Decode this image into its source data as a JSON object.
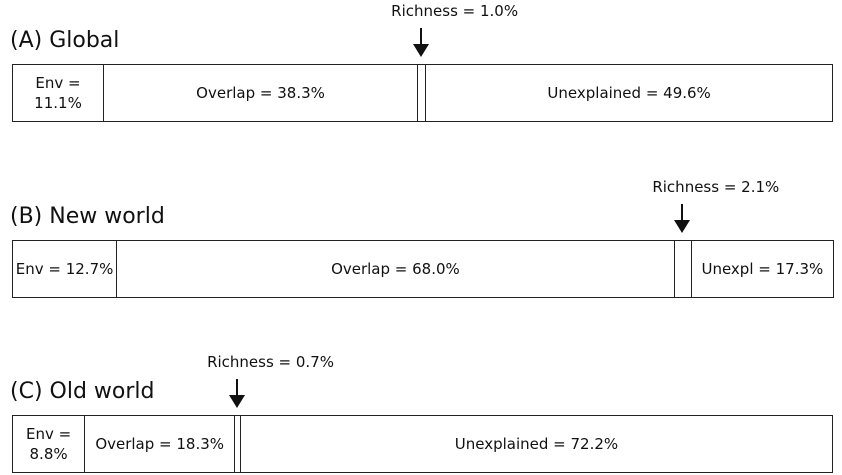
{
  "chart_data": [
    {
      "type": "stacked-bar",
      "title": "(A) Global",
      "values": [
        11.1,
        38.3,
        1.0,
        49.6
      ],
      "value_labels": [
        "Env = 11.1%",
        "Overlap = 38.3%",
        "Richness = 1.0%",
        "Unexplained = 49.6%"
      ]
    },
    {
      "type": "stacked-bar",
      "title": "(B) New world",
      "values": [
        12.7,
        68.0,
        2.1,
        17.3
      ],
      "value_labels": [
        "Env = 12.7%",
        "Overlap = 68.0%",
        "Richness = 2.1%",
        "Unexpl = 17.3%"
      ]
    },
    {
      "type": "stacked-bar",
      "title": "(C) Old world",
      "values": [
        8.8,
        18.3,
        0.7,
        72.2
      ],
      "value_labels": [
        "Env = 8.8%",
        "Overlap = 18.3%",
        "Richness = 0.7%",
        "Unexplained = 72.2%"
      ]
    }
  ]
}
